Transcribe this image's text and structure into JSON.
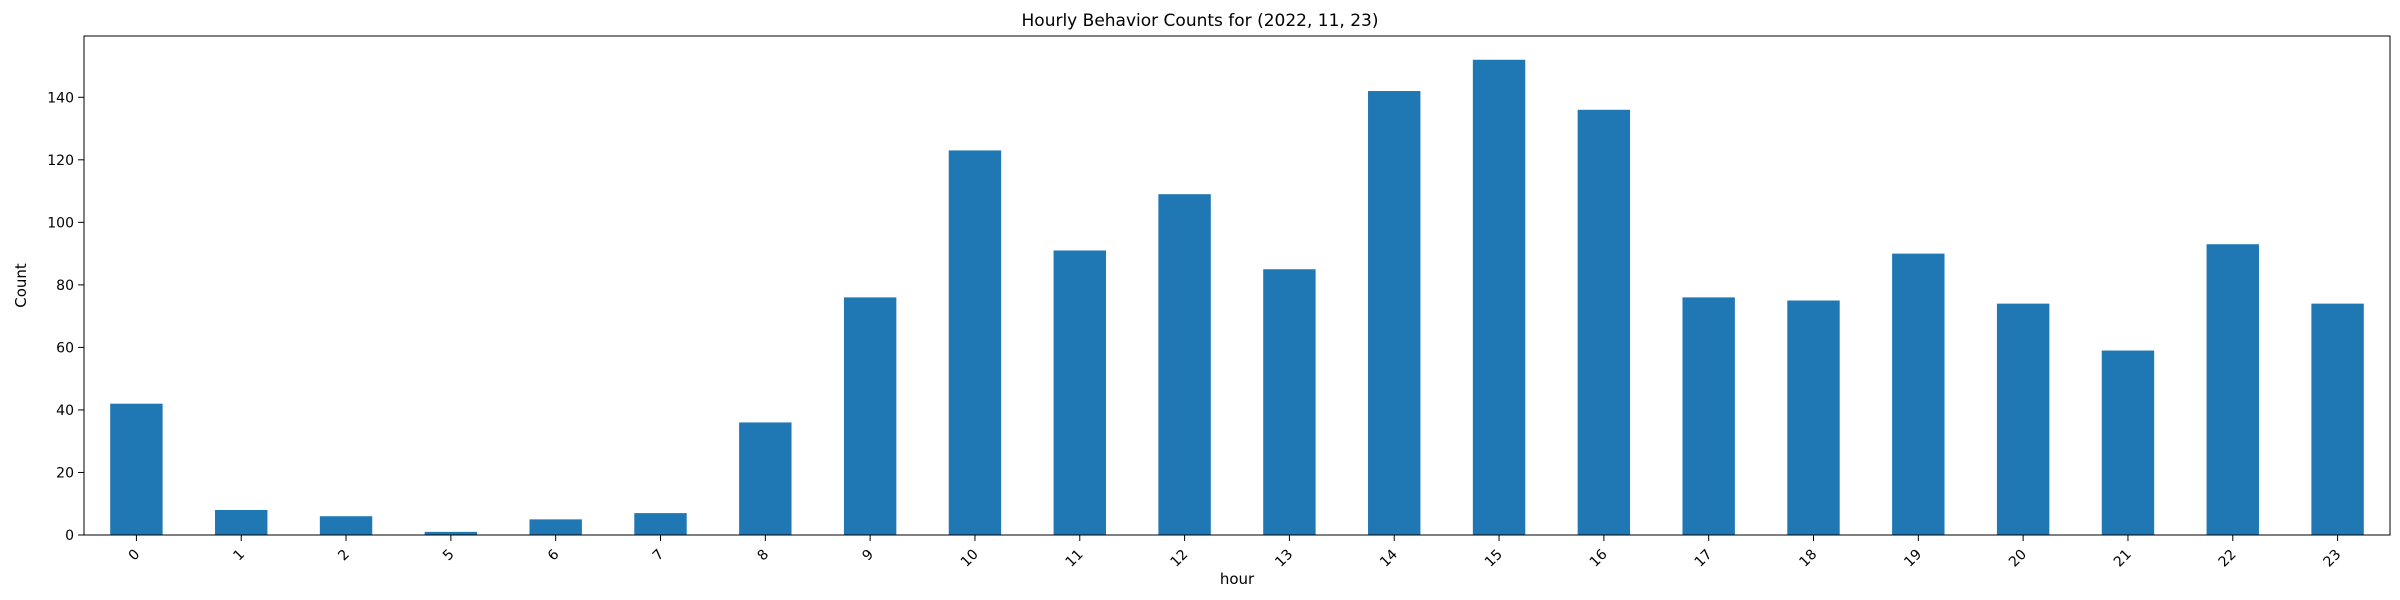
{
  "chart_data": {
    "type": "bar",
    "title": "Hourly Behavior Counts for (2022, 11, 23)",
    "xlabel": "hour",
    "ylabel": "Count",
    "categories": [
      "0",
      "1",
      "2",
      "5",
      "6",
      "7",
      "8",
      "9",
      "10",
      "11",
      "12",
      "13",
      "14",
      "15",
      "16",
      "17",
      "18",
      "19",
      "20",
      "21",
      "22",
      "23"
    ],
    "values": [
      42,
      8,
      6,
      1,
      5,
      7,
      36,
      76,
      123,
      91,
      109,
      85,
      142,
      152,
      136,
      76,
      75,
      90,
      74,
      59,
      93,
      74
    ],
    "ylim": [
      0,
      159.6
    ],
    "yticks": [
      "0",
      "20",
      "40",
      "60",
      "80",
      "100",
      "120",
      "140"
    ],
    "xtick_rotation": 45,
    "grid": false,
    "legend": "none",
    "bar_color": "#1f77b4"
  }
}
